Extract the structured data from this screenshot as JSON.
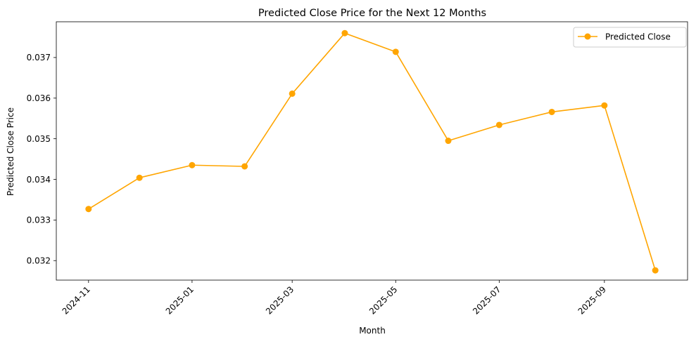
{
  "chart_data": {
    "type": "line",
    "title": "Predicted Close Price for the Next 12 Months",
    "xlabel": "Month",
    "ylabel": "Predicted Close Price",
    "x": [
      "2024-11-01",
      "2024-12-01",
      "2025-01-01",
      "2025-02-01",
      "2025-03-01",
      "2025-04-01",
      "2025-05-01",
      "2025-06-01",
      "2025-07-01",
      "2025-08-01",
      "2025-09-01",
      "2025-10-01"
    ],
    "x_ticks": [
      "2024-11",
      "2025-01",
      "2025-03",
      "2025-05",
      "2025-07",
      "2025-09"
    ],
    "y_ticks": [
      "0.032",
      "0.033",
      "0.034",
      "0.035",
      "0.036",
      "0.037"
    ],
    "ylim": [
      0.03152,
      0.03788
    ],
    "xlim": [
      "2024-10-13",
      "2025-10-20"
    ],
    "series": [
      {
        "name": "Predicted Close",
        "color": "#ffa500",
        "values": [
          0.03327,
          0.03404,
          0.03435,
          0.03432,
          0.03611,
          0.0376,
          0.03714,
          0.03495,
          0.03534,
          0.03566,
          0.03582,
          0.03176
        ]
      }
    ],
    "legend": {
      "position": "upper-right"
    },
    "grid": false
  }
}
